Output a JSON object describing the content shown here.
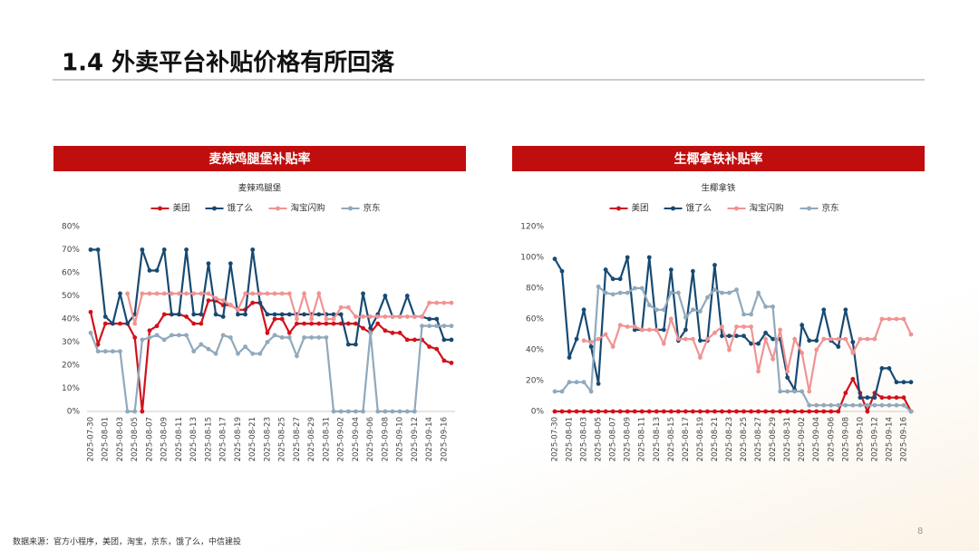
{
  "header": {
    "title": "1.4 外卖平台补贴价格有所回落"
  },
  "source": "数据来源：官方小程序，美团，淘宝，京东，饿了么，中信建投",
  "page_number": "8",
  "chart_data": [
    {
      "type": "line",
      "heading": "麦辣鸡腿堡补贴率",
      "title": "麦辣鸡腿堡",
      "categories": [
        "2025-07-30",
        null,
        "2025-08-01",
        null,
        "2025-08-03",
        null,
        "2025-08-05",
        null,
        "2025-08-07",
        null,
        "2025-08-09",
        null,
        "2025-08-11",
        null,
        "2025-08-13",
        null,
        "2025-08-15",
        null,
        "2025-08-17",
        null,
        "2025-08-19",
        null,
        "2025-08-21",
        null,
        "2025-08-23",
        null,
        "2025-08-25",
        null,
        "2025-08-27",
        null,
        "2025-08-29",
        null,
        "2025-08-31",
        null,
        "2025-09-02",
        null,
        "2025-09-04",
        null,
        "2025-09-06",
        null,
        "2025-09-08",
        null,
        "2025-09-10",
        null,
        "2025-09-12",
        null,
        "2025-09-14",
        null,
        "2025-09-16",
        null
      ],
      "ylim": [
        0,
        80
      ],
      "yticks": [
        {
          "value": 0,
          "label": "0%"
        },
        {
          "value": 10,
          "label": "10%"
        },
        {
          "value": 20,
          "label": "20%"
        },
        {
          "value": 30,
          "label": "30%"
        },
        {
          "value": 40,
          "label": "40%"
        },
        {
          "value": 50,
          "label": "50%"
        },
        {
          "value": 60,
          "label": "60%"
        },
        {
          "value": 70,
          "label": "70%"
        },
        {
          "value": 80,
          "label": "80%"
        }
      ],
      "series": [
        {
          "name": "美团",
          "color": "#d0121b",
          "values": [
            43,
            29,
            38,
            38,
            38,
            38,
            32,
            0,
            35,
            37,
            42,
            42,
            42,
            41,
            38,
            38,
            48,
            48,
            46,
            46,
            44,
            44,
            47,
            47,
            34,
            40,
            40,
            34,
            38,
            38,
            38,
            38,
            38,
            38,
            38,
            38,
            38,
            36,
            34,
            38,
            35,
            34,
            34,
            31,
            31,
            31,
            28,
            27,
            22,
            21
          ]
        },
        {
          "name": "饿了么",
          "color": "#174a72",
          "values": [
            70,
            70,
            41,
            38,
            51,
            38,
            42,
            70,
            61,
            61,
            70,
            42,
            42,
            70,
            42,
            42,
            64,
            42,
            41,
            64,
            42,
            42,
            70,
            47,
            42,
            42,
            42,
            42,
            42,
            42,
            42,
            42,
            42,
            42,
            42,
            29,
            29,
            51,
            36,
            42,
            50,
            41,
            41,
            50,
            41,
            41,
            40,
            40,
            31,
            31
          ]
        },
        {
          "name": "淘宝闪购",
          "color": "#f19393",
          "values": [
            null,
            null,
            null,
            null,
            null,
            51,
            38,
            51,
            51,
            51,
            51,
            51,
            51,
            51,
            51,
            51,
            51,
            49,
            48,
            46,
            44,
            51,
            51,
            51,
            51,
            51,
            51,
            51,
            40,
            51,
            40,
            51,
            40,
            40,
            45,
            45,
            41,
            41,
            41,
            41,
            41,
            41,
            41,
            41,
            41,
            41,
            47,
            47,
            47,
            47
          ]
        },
        {
          "name": "京东",
          "color": "#90a9bc",
          "values": [
            34,
            26,
            26,
            26,
            26,
            0,
            0,
            31,
            32,
            33,
            31,
            33,
            33,
            33,
            26,
            29,
            27,
            25,
            33,
            32,
            25,
            28,
            25,
            25,
            30,
            33,
            32,
            32,
            24,
            32,
            32,
            32,
            32,
            0,
            0,
            0,
            0,
            0,
            34,
            0,
            0,
            0,
            0,
            0,
            0,
            37,
            37,
            37,
            37,
            37
          ]
        }
      ]
    },
    {
      "type": "line",
      "heading": "生椰拿铁补贴率",
      "title": "生椰拿铁",
      "categories": [
        "2025-07-30",
        null,
        "2025-08-01",
        null,
        "2025-08-03",
        null,
        "2025-08-05",
        null,
        "2025-08-07",
        null,
        "2025-08-09",
        null,
        "2025-08-11",
        null,
        "2025-08-13",
        null,
        "2025-08-15",
        null,
        "2025-08-17",
        null,
        "2025-08-19",
        null,
        "2025-08-21",
        null,
        "2025-08-23",
        null,
        "2025-08-25",
        null,
        "2025-08-27",
        null,
        "2025-08-29",
        null,
        "2025-08-31",
        null,
        "2025-09-02",
        null,
        "2025-09-04",
        null,
        "2025-09-06",
        null,
        "2025-09-08",
        null,
        "2025-09-10",
        null,
        "2025-09-12",
        null,
        "2025-09-14",
        null,
        "2025-09-16",
        null
      ],
      "ylim": [
        0,
        120
      ],
      "yticks": [
        {
          "value": 0,
          "label": "0%"
        },
        {
          "value": 20,
          "label": "20%"
        },
        {
          "value": 40,
          "label": "40%"
        },
        {
          "value": 60,
          "label": "60%"
        },
        {
          "value": 80,
          "label": "80%"
        },
        {
          "value": 100,
          "label": "100%"
        },
        {
          "value": 120,
          "label": "120%"
        }
      ],
      "series": [
        {
          "name": "美团",
          "color": "#d0121b",
          "values": [
            0,
            0,
            0,
            0,
            0,
            0,
            0,
            0,
            0,
            0,
            0,
            0,
            0,
            0,
            0,
            0,
            0,
            0,
            0,
            0,
            0,
            0,
            0,
            0,
            0,
            0,
            0,
            0,
            0,
            0,
            0,
            0,
            0,
            0,
            0,
            0,
            0,
            0,
            0,
            0,
            12,
            21,
            12,
            0,
            12,
            9,
            9,
            9,
            9,
            0
          ]
        },
        {
          "name": "饿了么",
          "color": "#174a72",
          "values": [
            99,
            91,
            35,
            47,
            66,
            42,
            18,
            92,
            86,
            86,
            100,
            53,
            53,
            100,
            53,
            53,
            92,
            46,
            53,
            91,
            46,
            46,
            95,
            49,
            49,
            49,
            49,
            44,
            44,
            51,
            47,
            47,
            22,
            14,
            56,
            46,
            46,
            66,
            46,
            42,
            66,
            45,
            9,
            9,
            9,
            28,
            28,
            19,
            19,
            19
          ]
        },
        {
          "name": "淘宝闪购",
          "color": "#f19393",
          "values": [
            null,
            null,
            null,
            null,
            46,
            45,
            47,
            50,
            42,
            56,
            55,
            55,
            53,
            53,
            53,
            44,
            60,
            47,
            47,
            47,
            35,
            47,
            51,
            55,
            40,
            55,
            55,
            55,
            26,
            47,
            34,
            53,
            26,
            47,
            38,
            13,
            40,
            47,
            47,
            47,
            47,
            38,
            47,
            47,
            47,
            60,
            60,
            60,
            60,
            50
          ]
        },
        {
          "name": "京东",
          "color": "#90a9bc",
          "values": [
            13,
            13,
            19,
            19,
            19,
            13,
            81,
            77,
            76,
            77,
            77,
            80,
            80,
            69,
            66,
            66,
            77,
            77,
            61,
            66,
            65,
            74,
            79,
            77,
            77,
            79,
            63,
            63,
            77,
            68,
            68,
            13,
            13,
            13,
            13,
            4,
            4,
            4,
            4,
            4,
            4,
            4,
            4,
            4,
            4,
            4,
            4,
            4,
            4,
            0
          ]
        }
      ]
    }
  ]
}
